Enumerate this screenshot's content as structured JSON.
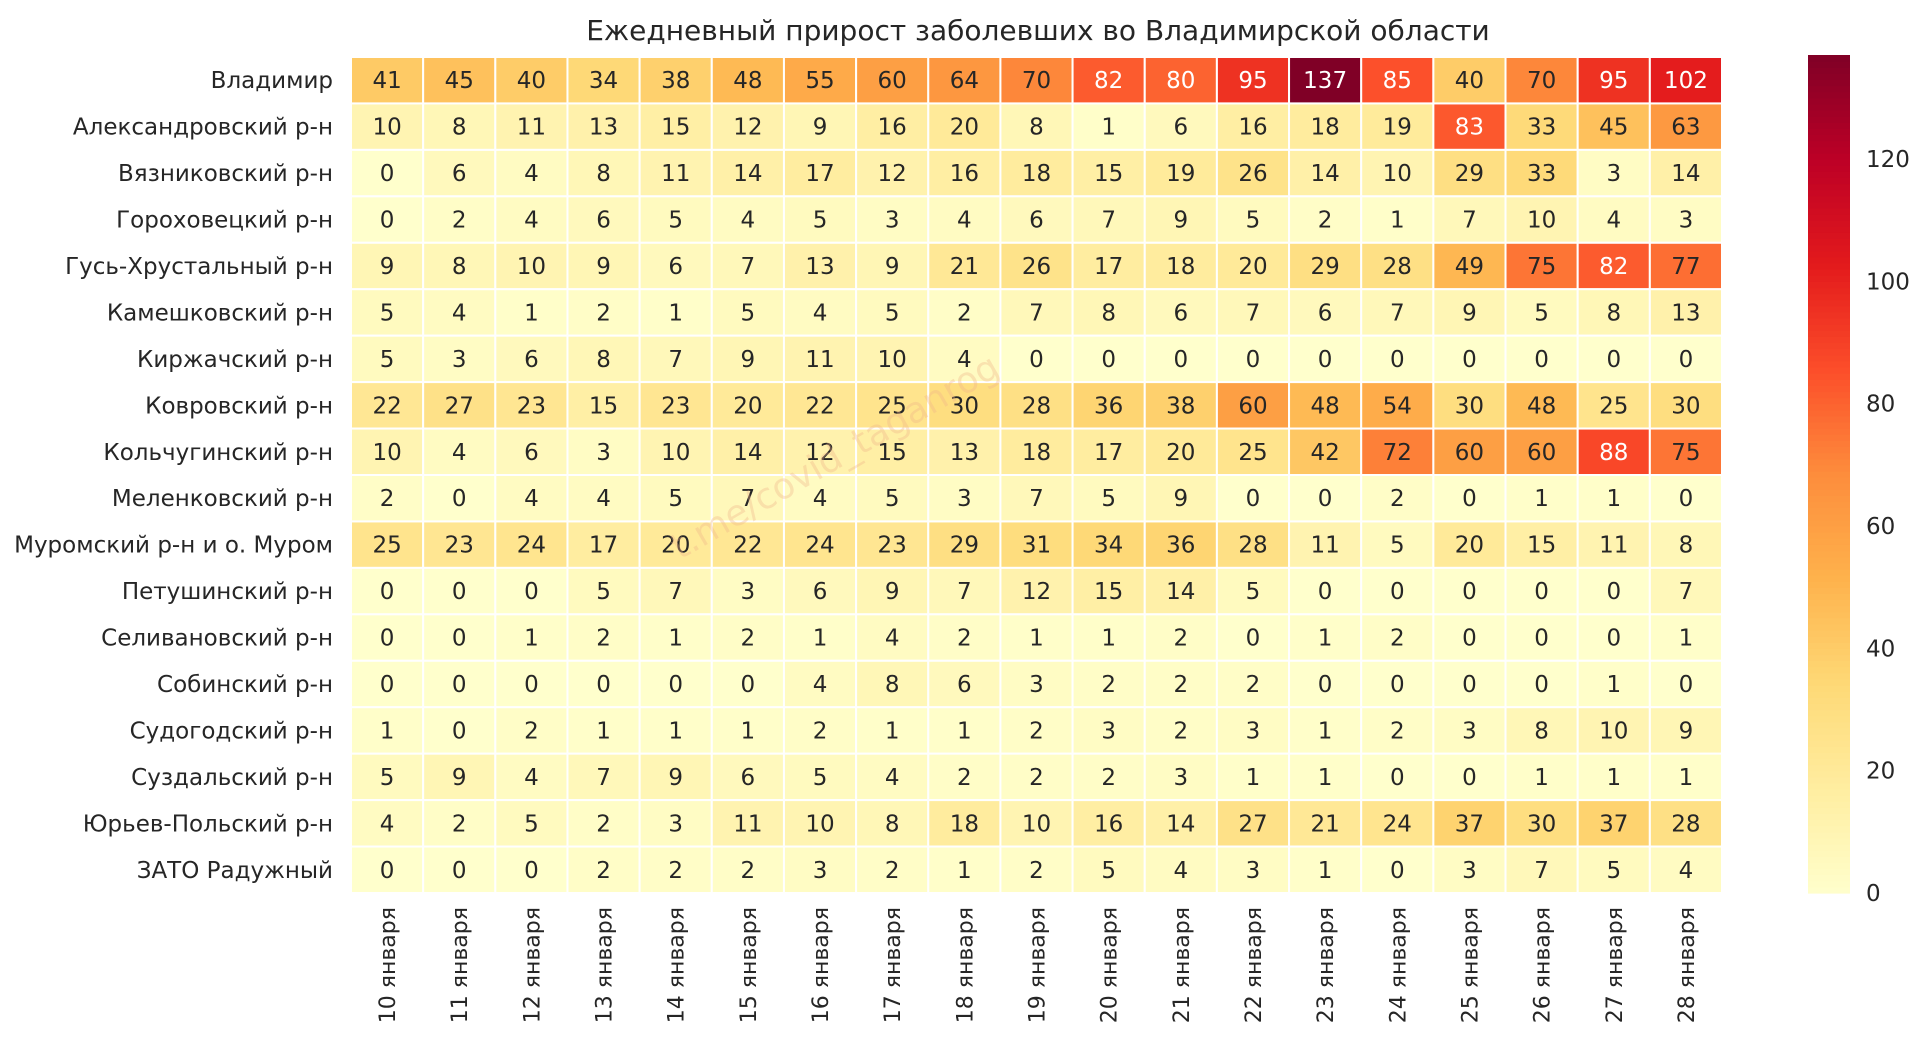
{
  "watermark": "t.me/covid_taganrog",
  "chart_data": {
    "type": "heatmap",
    "title": "Ежедневный прирост заболевших во Владимирской области",
    "xlabel": "",
    "ylabel": "",
    "columns": [
      "10 января",
      "11 января",
      "12 января",
      "13 января",
      "14 января",
      "15 января",
      "16 января",
      "17 января",
      "18 января",
      "19 января",
      "20 января",
      "21 января",
      "22 января",
      "23 января",
      "24 января",
      "25 января",
      "26 января",
      "27 января",
      "28 января"
    ],
    "rows": [
      "Владимир",
      "Александровский р-н",
      "Вязниковский р-н",
      "Гороховецкий р-н",
      "Гусь-Хрустальный р-н",
      "Камешковский р-н",
      "Киржачский р-н",
      "Ковровский р-н",
      "Кольчугинский р-н",
      "Меленковский р-н",
      "Муромский р-н и о. Муром",
      "Петушинский р-н",
      "Селивановский р-н",
      "Собинский р-н",
      "Судогодский р-н",
      "Суздальский р-н",
      "Юрьев-Польский р-н",
      "ЗАТО Радужный"
    ],
    "values": [
      [
        41,
        45,
        40,
        34,
        38,
        48,
        55,
        60,
        64,
        70,
        82,
        80,
        95,
        137,
        85,
        40,
        70,
        95,
        102
      ],
      [
        10,
        8,
        11,
        13,
        15,
        12,
        9,
        16,
        20,
        8,
        1,
        6,
        16,
        18,
        19,
        83,
        33,
        45,
        63
      ],
      [
        0,
        6,
        4,
        8,
        11,
        14,
        17,
        12,
        16,
        18,
        15,
        19,
        26,
        14,
        10,
        29,
        33,
        3,
        14
      ],
      [
        0,
        2,
        4,
        6,
        5,
        4,
        5,
        3,
        4,
        6,
        7,
        9,
        5,
        2,
        1,
        7,
        10,
        4,
        3
      ],
      [
        9,
        8,
        10,
        9,
        6,
        7,
        13,
        9,
        21,
        26,
        17,
        18,
        20,
        29,
        28,
        49,
        75,
        82,
        77
      ],
      [
        5,
        4,
        1,
        2,
        1,
        5,
        4,
        5,
        2,
        7,
        8,
        6,
        7,
        6,
        7,
        9,
        5,
        8,
        13
      ],
      [
        5,
        3,
        6,
        8,
        7,
        9,
        11,
        10,
        4,
        0,
        0,
        0,
        0,
        0,
        0,
        0,
        0,
        0,
        0
      ],
      [
        22,
        27,
        23,
        15,
        23,
        20,
        22,
        25,
        30,
        28,
        36,
        38,
        60,
        48,
        54,
        30,
        48,
        25,
        30
      ],
      [
        10,
        4,
        6,
        3,
        10,
        14,
        12,
        15,
        13,
        18,
        17,
        20,
        25,
        42,
        72,
        60,
        60,
        88,
        75
      ],
      [
        2,
        0,
        4,
        4,
        5,
        7,
        4,
        5,
        3,
        7,
        5,
        9,
        0,
        0,
        2,
        0,
        1,
        1,
        0
      ],
      [
        25,
        23,
        24,
        17,
        20,
        22,
        24,
        23,
        29,
        31,
        34,
        36,
        28,
        11,
        5,
        20,
        15,
        11,
        8
      ],
      [
        0,
        0,
        0,
        5,
        7,
        3,
        6,
        9,
        7,
        12,
        15,
        14,
        5,
        0,
        0,
        0,
        0,
        0,
        7
      ],
      [
        0,
        0,
        1,
        2,
        1,
        2,
        1,
        4,
        2,
        1,
        1,
        2,
        0,
        1,
        2,
        0,
        0,
        0,
        1
      ],
      [
        0,
        0,
        0,
        0,
        0,
        0,
        4,
        8,
        6,
        3,
        2,
        2,
        2,
        0,
        0,
        0,
        0,
        1,
        0
      ],
      [
        1,
        0,
        2,
        1,
        1,
        1,
        2,
        1,
        1,
        2,
        3,
        2,
        3,
        1,
        2,
        3,
        8,
        10,
        9
      ],
      [
        5,
        9,
        4,
        7,
        9,
        6,
        5,
        4,
        2,
        2,
        2,
        3,
        1,
        1,
        0,
        0,
        1,
        1,
        1
      ],
      [
        4,
        2,
        5,
        2,
        3,
        11,
        10,
        8,
        18,
        10,
        16,
        14,
        27,
        21,
        24,
        37,
        30,
        37,
        28
      ],
      [
        0,
        0,
        0,
        2,
        2,
        2,
        3,
        2,
        1,
        2,
        5,
        4,
        3,
        1,
        0,
        3,
        7,
        5,
        4
      ]
    ],
    "vmin": 0,
    "vmax": 137,
    "colormap": "YlOrRd",
    "colorbar_ticks": [
      0,
      20,
      40,
      60,
      80,
      100,
      120
    ],
    "legend": "right"
  }
}
